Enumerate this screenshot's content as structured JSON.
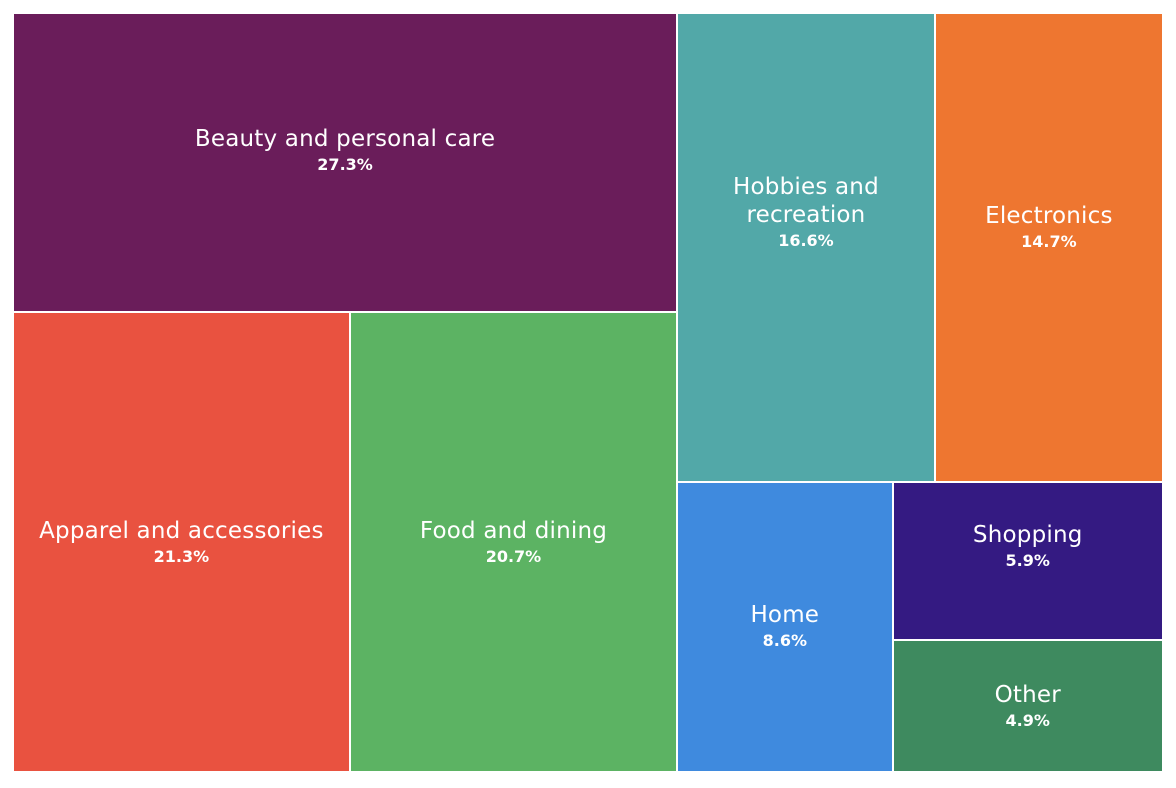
{
  "chart_data": {
    "type": "treemap",
    "title": "",
    "items": [
      {
        "name": "Beauty and personal care",
        "value": 27.3,
        "label": "27.3%",
        "color": "#6a1d5a"
      },
      {
        "name": "Apparel and accessories",
        "value": 21.3,
        "label": "21.3%",
        "color": "#e95240"
      },
      {
        "name": "Food and dining",
        "value": 20.7,
        "label": "20.7%",
        "color": "#5cb363"
      },
      {
        "name": "Hobbies and\nrecreation",
        "value": 16.6,
        "label": "16.6%",
        "color": "#52a8a8"
      },
      {
        "name": "Electronics",
        "value": 14.7,
        "label": "14.7%",
        "color": "#ee7630"
      },
      {
        "name": "Home",
        "value": 8.6,
        "label": "8.6%",
        "color": "#3f8ade"
      },
      {
        "name": "Shopping",
        "value": 5.9,
        "label": "5.9%",
        "color": "#341a82"
      },
      {
        "name": "Other",
        "value": 4.9,
        "label": "4.9%",
        "color": "#3e8a5f"
      }
    ]
  }
}
